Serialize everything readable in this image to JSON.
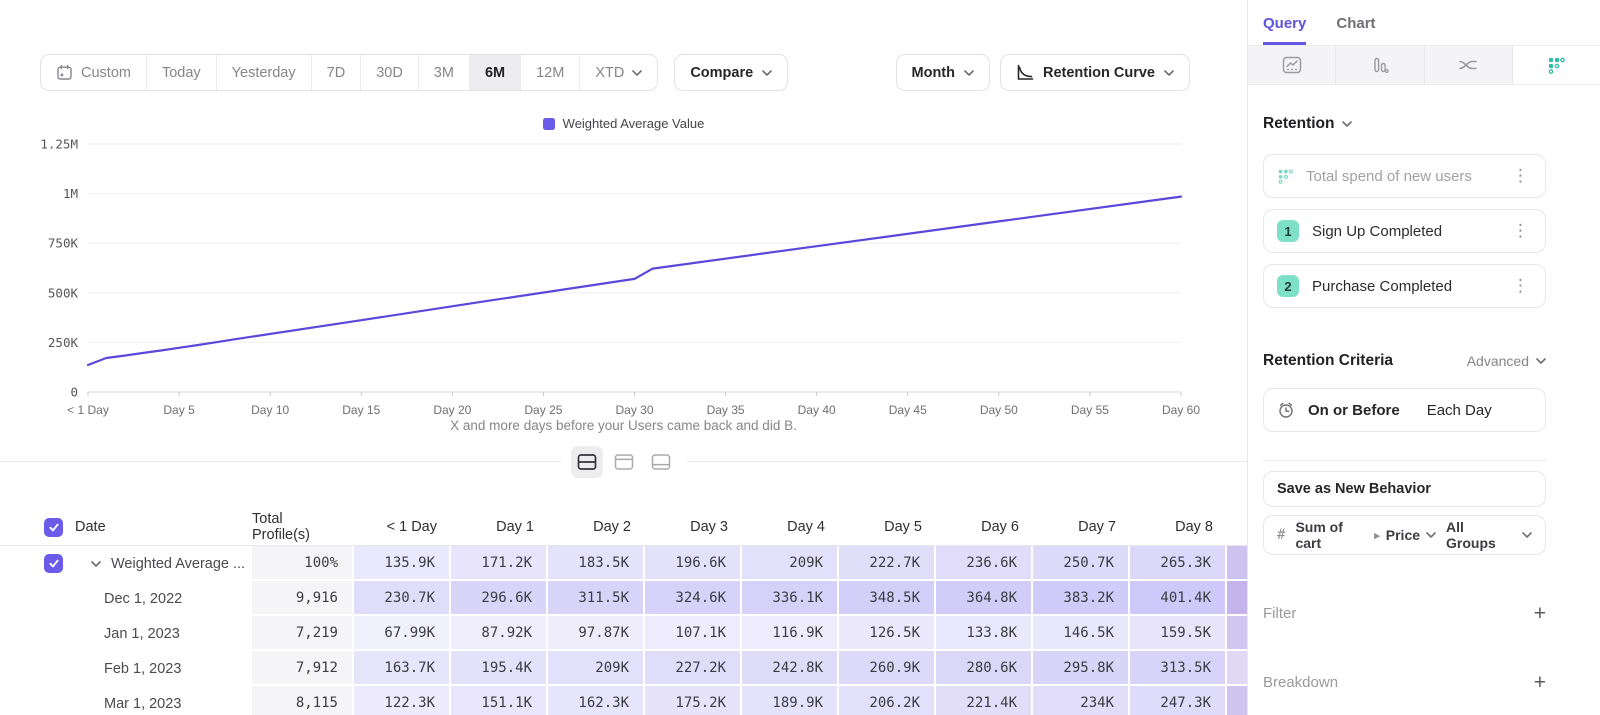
{
  "toolbar": {
    "date_ranges": [
      "Custom",
      "Today",
      "Yesterday",
      "7D",
      "30D",
      "3M",
      "6M",
      "12M",
      "XTD"
    ],
    "active_range": "6M",
    "compare_label": "Compare",
    "granularity_label": "Month",
    "chart_type_label": "Retention Curve"
  },
  "chart": {
    "legend_label": "Weighted Average Value",
    "legend_color": "#6a5ce8",
    "caption": "X and more days before your Users came back and did B."
  },
  "chart_data": {
    "type": "line",
    "series_name": "Weighted Average Value",
    "line_color": "#5948d9",
    "y_max": 1250000,
    "x_max": 60,
    "grid": true,
    "legend_position": "top-center",
    "y_ticks": [
      {
        "label": "1.25M",
        "value": 1250000
      },
      {
        "label": "1M",
        "value": 1000000
      },
      {
        "label": "750K",
        "value": 750000
      },
      {
        "label": "500K",
        "value": 500000
      },
      {
        "label": "250K",
        "value": 250000
      },
      {
        "label": "0",
        "value": 0
      }
    ],
    "x_ticks": [
      {
        "label": "< 1 Day",
        "day": 0
      },
      {
        "label": "Day 5",
        "day": 5
      },
      {
        "label": "Day 10",
        "day": 10
      },
      {
        "label": "Day 15",
        "day": 15
      },
      {
        "label": "Day 20",
        "day": 20
      },
      {
        "label": "Day 25",
        "day": 25
      },
      {
        "label": "Day 30",
        "day": 30
      },
      {
        "label": "Day 35",
        "day": 35
      },
      {
        "label": "Day 40",
        "day": 40
      },
      {
        "label": "Day 45",
        "day": 45
      },
      {
        "label": "Day 50",
        "day": 50
      },
      {
        "label": "Day 55",
        "day": 55
      },
      {
        "label": "Day 60",
        "day": 60
      }
    ],
    "line_points": [
      [
        0,
        135900
      ],
      [
        1,
        171200
      ],
      [
        2,
        183500
      ],
      [
        3,
        196600
      ],
      [
        4,
        209000
      ],
      [
        5,
        222700
      ],
      [
        6,
        236600
      ],
      [
        7,
        250700
      ],
      [
        8,
        265300
      ],
      [
        15,
        362000
      ],
      [
        22,
        460000
      ],
      [
        30,
        570000
      ],
      [
        31,
        622000
      ],
      [
        40,
        735000
      ],
      [
        50,
        860000
      ],
      [
        60,
        985000
      ]
    ],
    "caption": "X and more days before your Users came back and did B."
  },
  "table": {
    "headers": [
      "Date",
      "Total Profile(s)",
      "< 1 Day",
      "Day 1",
      "Day 2",
      "Day 3",
      "Day 4",
      "Day 5",
      "Day 6",
      "Day 7",
      "Day 8"
    ],
    "rows": [
      {
        "date": "Weighted Average ...",
        "expandable": true,
        "total": "100%",
        "values": [
          "135.9K",
          "171.2K",
          "183.5K",
          "196.6K",
          "209K",
          "222.7K",
          "236.6K",
          "250.7K",
          "265.3K"
        ]
      },
      {
        "date": "Dec 1, 2022",
        "total": "9,916",
        "values": [
          "230.7K",
          "296.6K",
          "311.5K",
          "324.6K",
          "336.1K",
          "348.5K",
          "364.8K",
          "383.2K",
          "401.4K"
        ]
      },
      {
        "date": "Jan 1, 2023",
        "total": "7,219",
        "values": [
          "67.99K",
          "87.92K",
          "97.87K",
          "107.1K",
          "116.9K",
          "126.5K",
          "133.8K",
          "146.5K",
          "159.5K"
        ]
      },
      {
        "date": "Feb 1, 2023",
        "total": "7,912",
        "values": [
          "163.7K",
          "195.4K",
          "209K",
          "227.2K",
          "242.8K",
          "260.9K",
          "280.6K",
          "295.8K",
          "313.5K"
        ]
      },
      {
        "date": "Mar 1, 2023",
        "total": "8,115",
        "values": [
          "122.3K",
          "151.1K",
          "162.3K",
          "175.2K",
          "189.9K",
          "206.2K",
          "221.4K",
          "234K",
          "247.3K"
        ]
      }
    ],
    "day9_sliver_colors": [
      "#cdc3f0",
      "#c3b5ec",
      "#d0c6f1",
      "#e0d9f6",
      "#cfc5f1"
    ],
    "heatmap_base_rgb": "105,88,232"
  },
  "sidebar": {
    "tabs": [
      {
        "label": "Query"
      },
      {
        "label": "Chart"
      }
    ],
    "active_tab": "Query",
    "measurement_label": "Retention",
    "behavior_placeholder": "Total spend of new users",
    "steps": [
      {
        "num": "1",
        "label": "Sign Up Completed"
      },
      {
        "num": "2",
        "label": "Purchase Completed"
      }
    ],
    "criteria": {
      "title": "Retention Criteria",
      "mode": "Advanced",
      "timing": "On or Before",
      "unit": "Each Day"
    },
    "save_button_label": "Save as New Behavior",
    "measure": {
      "prefix": "#",
      "property": "Sum of cart",
      "sub_property": "Price",
      "group": "All Groups"
    },
    "filter_label": "Filter",
    "breakdown_label": "Breakdown",
    "accent_teal": "#2fbfa6",
    "accent_purple": "#6458e2"
  }
}
